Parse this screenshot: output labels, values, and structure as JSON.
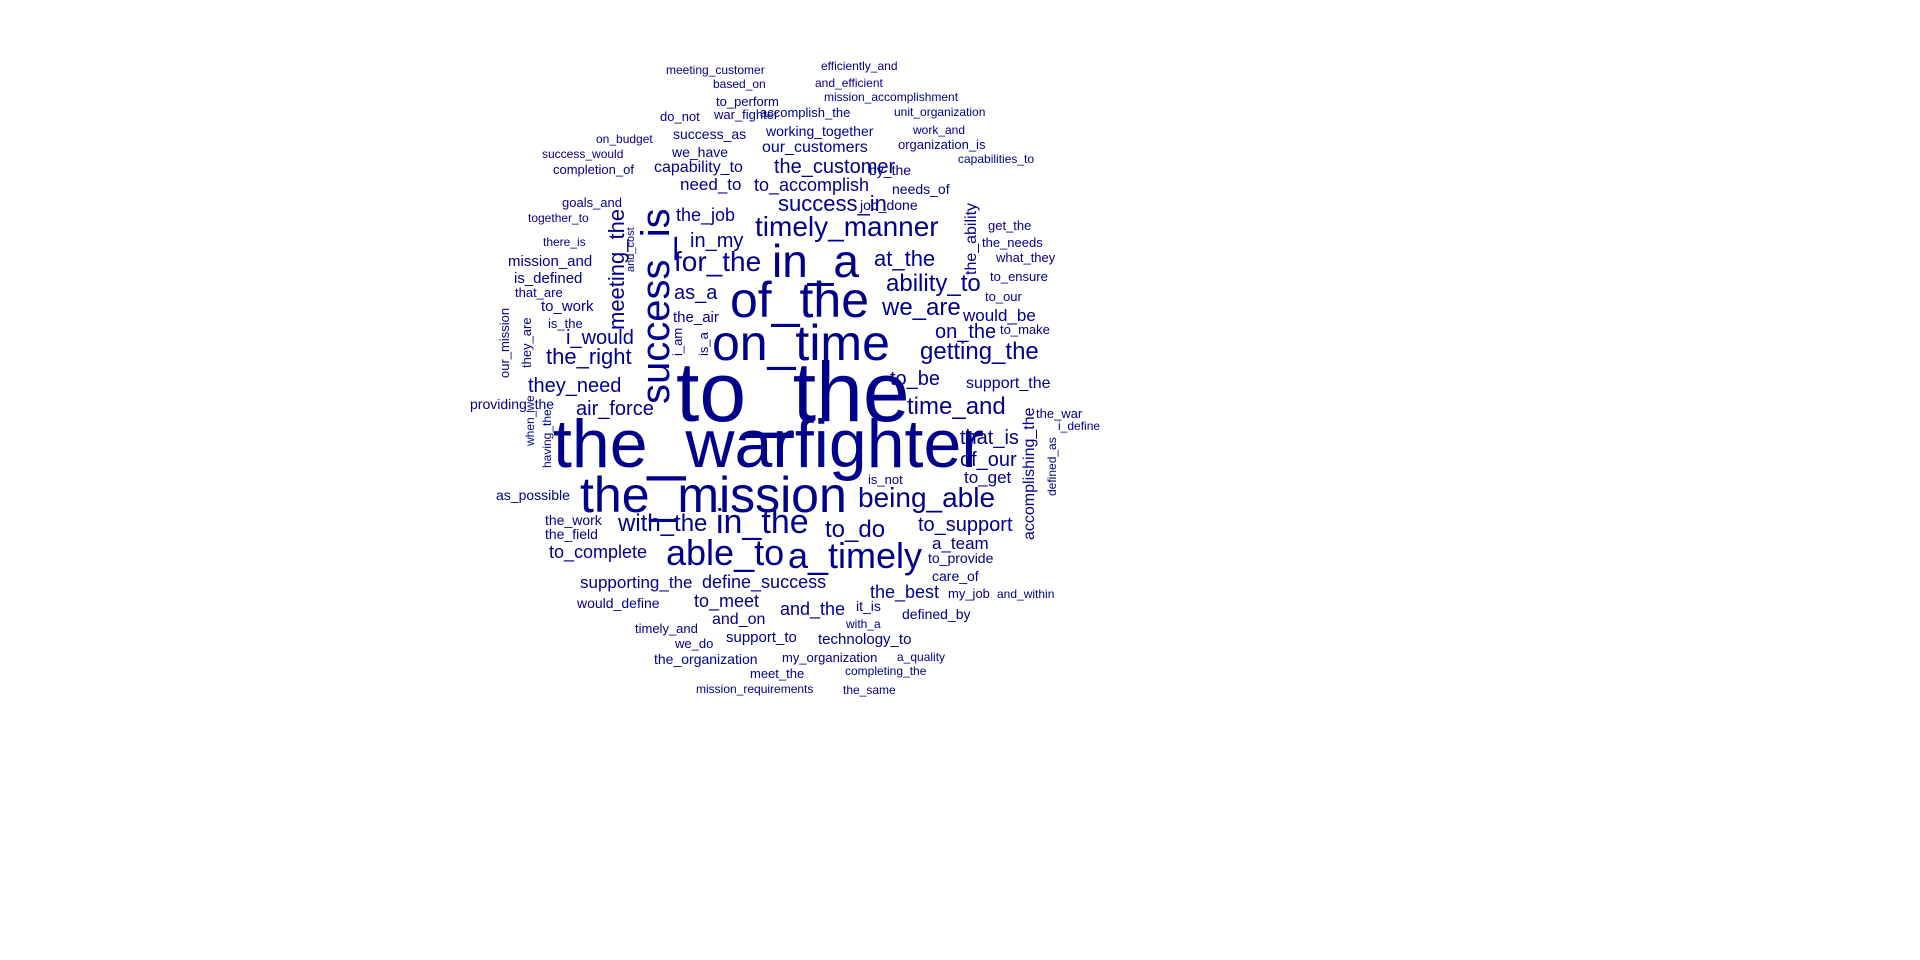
{
  "color": "#00008b",
  "words": [
    "to_the",
    "the_warfighter",
    "the_mission",
    "on_time",
    "of_the",
    "success_is",
    "in_a",
    "able_to",
    "a_timely",
    "in_the",
    "being_able",
    "timely_manner",
    "ability_to",
    "for_the",
    "we_are",
    "time_and",
    "getting_the",
    "success_in",
    "with_the",
    "to_do",
    "the_customer",
    "meeting_the",
    "to_accomplish",
    "at_the",
    "to_support",
    "i_would",
    "the_right",
    "they_need",
    "on_the",
    "of_our",
    "that_is",
    "to_be",
    "the_best",
    "define_success",
    "to_complete",
    "supporting_the",
    "would_be",
    "as_a",
    "in_my",
    "air_force",
    "accomplishing_the",
    "the_ability",
    "to_meet",
    "and_the",
    "need_to",
    "the_job",
    "our_customers",
    "capability_to",
    "a_team",
    "to_get",
    "support_the",
    "as_possible",
    "the_field",
    "the_work",
    "would_define",
    "and_on",
    "it_is",
    "defined_by",
    "to_provide",
    "care_of",
    "support_to",
    "technology_to",
    "providing_the",
    "the_organization",
    "is_defined",
    "mission_and",
    "working_together",
    "we_have",
    "success_as",
    "accomplish_the",
    "war_fighter",
    "do_not",
    "to_perform",
    "organization_is",
    "needs_of",
    "job_done",
    "by_the",
    "completion_of",
    "success_would",
    "goals_and",
    "together_to",
    "there_is",
    "that_are",
    "to_work",
    "is_the",
    "the_air",
    "the_needs",
    "what_they",
    "to_ensure",
    "to_our",
    "to_make",
    "defined_as",
    "i_define",
    "the_war",
    "is_not",
    "my_job",
    "and_within",
    "with_a",
    "we_do",
    "timely_and",
    "my_organization",
    "a_quality",
    "mission_requirements",
    "meet_the",
    "completing_the",
    "the_same",
    "our_mission",
    "they_are",
    "when_we",
    "having_the",
    "i_am",
    "is_a",
    "get_the",
    "on_budget",
    "and_cost",
    "mission_accomplishment",
    "unit_organization",
    "meeting_customer",
    "efficiently_and",
    "and_efficient",
    "based_on",
    "work_and",
    "capabilities_to"
  ]
}
